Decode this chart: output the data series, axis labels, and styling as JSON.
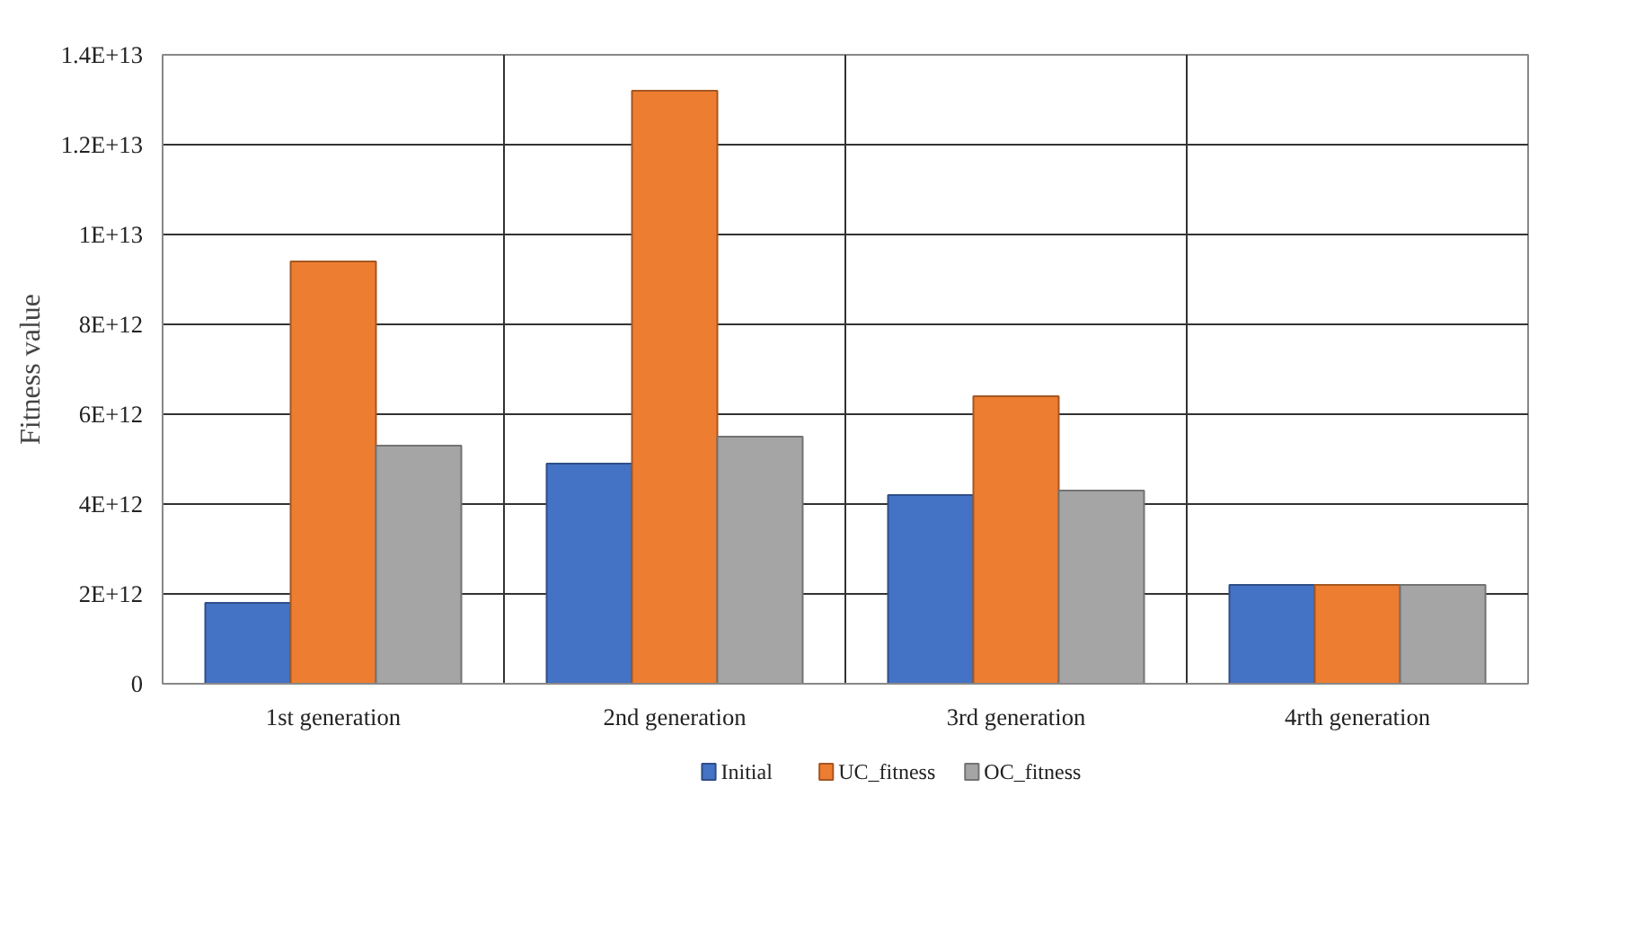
{
  "chart_data": {
    "type": "bar",
    "ylabel": "Fitness value",
    "categories": [
      "1st generation",
      "2nd generation",
      "3rd generation",
      "4rth generation"
    ],
    "series": [
      {
        "name": "Initial",
        "color": "#4472c4",
        "values": [
          1800000000000.0,
          4900000000000.0,
          4200000000000.0,
          2200000000000.0
        ]
      },
      {
        "name": "UC_fitness",
        "color": "#ed7d31",
        "values": [
          9400000000000.0,
          13200000000000.0,
          6400000000000.0,
          2200000000000.0
        ]
      },
      {
        "name": "OC_fitness",
        "color": "#a5a5a5",
        "values": [
          5300000000000.0,
          5500000000000.0,
          4300000000000.0,
          2200000000000.0
        ]
      }
    ],
    "ylim": [
      0,
      14000000000000.0
    ],
    "yticks": [
      0,
      {
        "value": 2000000000000.0,
        "label": "2E+12"
      },
      {
        "value": 4000000000000.0,
        "label": "4E+12"
      },
      {
        "value": 6000000000000.0,
        "label": "6E+12"
      },
      {
        "value": 8000000000000.0,
        "label": "8E+12"
      },
      {
        "value": 10000000000000.0,
        "label": "1E+13"
      },
      {
        "value": 12000000000000.0,
        "label": "1.2E+13"
      },
      {
        "value": 14000000000000.0,
        "label": "1.4E+13"
      }
    ],
    "grid": true,
    "legend": "bottom"
  }
}
